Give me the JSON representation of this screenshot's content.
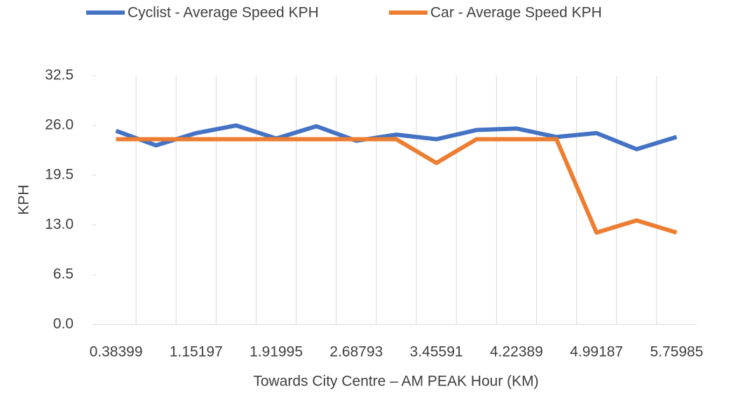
{
  "chart_data": {
    "type": "line",
    "x_label": "Towards City Centre – AM PEAK Hour (KM)",
    "y_label": "KPH",
    "categories": [
      "0.38399",
      null,
      "1.15197",
      null,
      "1.91995",
      null,
      "2.68793",
      null,
      "3.45591",
      null,
      "4.22389",
      null,
      "4.99187",
      null,
      "5.75985"
    ],
    "series": [
      {
        "name": "Cyclist - Average Speed KPH",
        "color": "#4472c4",
        "values": [
          25.3,
          23.4,
          25.0,
          26.0,
          24.3,
          25.9,
          24.0,
          24.8,
          24.2,
          25.4,
          25.6,
          24.5,
          25.0,
          22.9,
          24.5
        ]
      },
      {
        "name": "Car - Average Speed KPH",
        "color": "#ed7d31",
        "values": [
          24.2,
          24.2,
          24.2,
          24.2,
          24.2,
          24.2,
          24.2,
          24.2,
          21.1,
          24.2,
          24.2,
          24.2,
          12.0,
          13.6,
          12.0
        ]
      }
    ],
    "ylim": [
      0,
      32.5
    ],
    "yticks": [
      {
        "value": 0,
        "label": "0.0"
      },
      6.5,
      {
        "value": 13,
        "label": "13.0"
      },
      19.5,
      {
        "value": 26,
        "label": "26.0"
      },
      32.5
    ],
    "legend": "top"
  }
}
